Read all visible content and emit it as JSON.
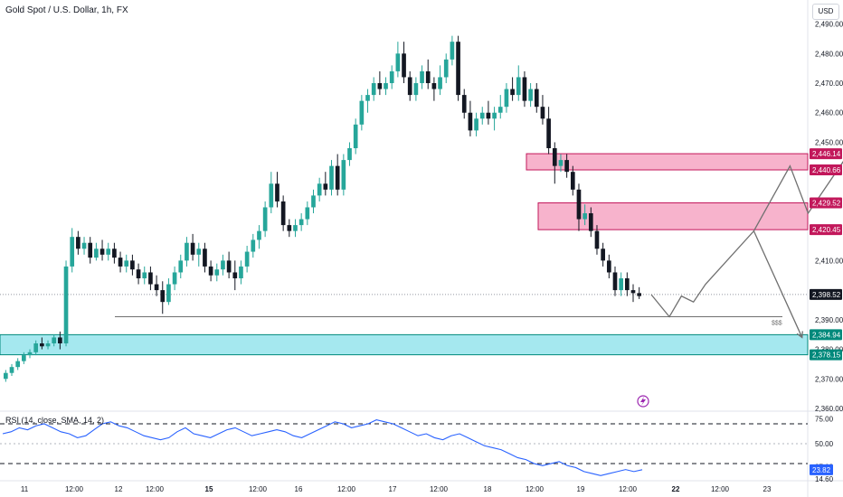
{
  "header": {
    "title": "Gold Spot / U.S. Dollar, 1h, FX",
    "currency": "USD",
    "rsi_label": "RSI (14, close, SMA, 14, 2)"
  },
  "colors": {
    "up": "#26a69a",
    "down": "#131722",
    "supply_zone_fill": "#f7b3cc",
    "supply_zone_stroke": "#c2185b",
    "demand_zone_fill": "#a5e8ef",
    "demand_zone_stroke": "#00897b",
    "rsi_line": "#2962ff",
    "path_line": "#707070",
    "last_price_badge": "#131722",
    "lightning_icon": "#9c27b0"
  },
  "chart_data": [
    {
      "type": "candlestick",
      "title": "Gold Spot / U.S. Dollar, 1h, FX",
      "xlabel": "",
      "ylabel": "",
      "ylim": [
        2360,
        2492
      ],
      "grid": false,
      "y_ticks": [
        "2,490.00",
        "2,480.00",
        "2,470.00",
        "2,460.00",
        "2,450.00",
        "2,410.00",
        "2,390.00",
        "2,380.00",
        "2,370.00",
        "2,360.00"
      ],
      "x_ticks": [
        "11",
        "12:00",
        "12",
        "12:00",
        "15",
        "12:00",
        "16",
        "12:00",
        "17",
        "12:00",
        "18",
        "12:00",
        "19",
        "12:00",
        "22",
        "12:00",
        "23"
      ],
      "price_markers": [
        {
          "label": "2,446.14",
          "value": 2446.14,
          "kind": "supply"
        },
        {
          "label": "2,440.66",
          "value": 2440.66,
          "kind": "supply"
        },
        {
          "label": "2,429.52",
          "value": 2429.52,
          "kind": "supply"
        },
        {
          "label": "2,420.45",
          "value": 2420.45,
          "kind": "supply"
        },
        {
          "label": "2,398.52",
          "value": 2398.52,
          "kind": "last"
        },
        {
          "label": "2,384.94",
          "value": 2384.94,
          "kind": "demand"
        },
        {
          "label": "2,378.15",
          "value": 2378.15,
          "kind": "demand"
        }
      ],
      "zones": [
        {
          "top": 2446.14,
          "bottom": 2440.66,
          "kind": "supply"
        },
        {
          "top": 2429.52,
          "bottom": 2420.45,
          "kind": "supply"
        },
        {
          "top": 2384.94,
          "bottom": 2378.15,
          "kind": "demand"
        }
      ],
      "liquidity_line": {
        "value": 2391,
        "label": "$$$"
      },
      "series": [
        {
          "values": [
            [
              2370,
              2373,
              2369,
              2372
            ],
            [
              2372,
              2375,
              2371,
              2374
            ],
            [
              2374,
              2377,
              2373,
              2376
            ],
            [
              2376,
              2379,
              2375,
              2378
            ],
            [
              2378,
              2380,
              2377,
              2379
            ],
            [
              2379,
              2383,
              2378,
              2382
            ],
            [
              2382,
              2384,
              2380,
              2381
            ],
            [
              2381,
              2383,
              2380,
              2382
            ],
            [
              2382,
              2385,
              2381,
              2384
            ],
            [
              2384,
              2386,
              2380,
              2382
            ],
            [
              2382,
              2410,
              2381,
              2408
            ],
            [
              2408,
              2421,
              2406,
              2418
            ],
            [
              2418,
              2420,
              2412,
              2414
            ],
            [
              2414,
              2418,
              2412,
              2416
            ],
            [
              2416,
              2418,
              2409,
              2411
            ],
            [
              2411,
              2416,
              2410,
              2414
            ],
            [
              2414,
              2417,
              2410,
              2412
            ],
            [
              2412,
              2416,
              2410,
              2414
            ],
            [
              2414,
              2416,
              2409,
              2411
            ],
            [
              2411,
              2413,
              2406,
              2408
            ],
            [
              2408,
              2412,
              2406,
              2410
            ],
            [
              2410,
              2412,
              2405,
              2407
            ],
            [
              2407,
              2409,
              2402,
              2404
            ],
            [
              2404,
              2408,
              2402,
              2406
            ],
            [
              2406,
              2408,
              2400,
              2402
            ],
            [
              2402,
              2405,
              2398,
              2400
            ],
            [
              2400,
              2403,
              2392,
              2396
            ],
            [
              2396,
              2404,
              2395,
              2402
            ],
            [
              2402,
              2408,
              2400,
              2406
            ],
            [
              2406,
              2412,
              2404,
              2410
            ],
            [
              2410,
              2418,
              2408,
              2416
            ],
            [
              2416,
              2419,
              2410,
              2412
            ],
            [
              2412,
              2416,
              2408,
              2414
            ],
            [
              2414,
              2416,
              2406,
              2408
            ],
            [
              2408,
              2410,
              2403,
              2405
            ],
            [
              2405,
              2409,
              2403,
              2407
            ],
            [
              2407,
              2412,
              2405,
              2410
            ],
            [
              2410,
              2413,
              2404,
              2406
            ],
            [
              2406,
              2410,
              2400,
              2404
            ],
            [
              2404,
              2410,
              2402,
              2408
            ],
            [
              2408,
              2415,
              2406,
              2413
            ],
            [
              2413,
              2419,
              2411,
              2417
            ],
            [
              2417,
              2422,
              2414,
              2420
            ],
            [
              2420,
              2430,
              2418,
              2428
            ],
            [
              2428,
              2440,
              2426,
              2436
            ],
            [
              2436,
              2440,
              2428,
              2430
            ],
            [
              2430,
              2432,
              2420,
              2422
            ],
            [
              2422,
              2424,
              2418,
              2420
            ],
            [
              2420,
              2424,
              2418,
              2422
            ],
            [
              2422,
              2426,
              2420,
              2424
            ],
            [
              2424,
              2430,
              2422,
              2428
            ],
            [
              2428,
              2434,
              2426,
              2432
            ],
            [
              2432,
              2438,
              2430,
              2436
            ],
            [
              2436,
              2440,
              2432,
              2434
            ],
            [
              2434,
              2444,
              2432,
              2442
            ],
            [
              2442,
              2446,
              2432,
              2434
            ],
            [
              2434,
              2446,
              2432,
              2444
            ],
            [
              2444,
              2450,
              2442,
              2448
            ],
            [
              2448,
              2458,
              2446,
              2456
            ],
            [
              2456,
              2466,
              2454,
              2464
            ],
            [
              2464,
              2468,
              2460,
              2466
            ],
            [
              2466,
              2472,
              2464,
              2470
            ],
            [
              2470,
              2474,
              2466,
              2468
            ],
            [
              2468,
              2472,
              2466,
              2470
            ],
            [
              2470,
              2476,
              2468,
              2474
            ],
            [
              2474,
              2484,
              2472,
              2480
            ],
            [
              2480,
              2484,
              2470,
              2472
            ],
            [
              2472,
              2474,
              2464,
              2466
            ],
            [
              2466,
              2472,
              2464,
              2470
            ],
            [
              2470,
              2476,
              2468,
              2474
            ],
            [
              2474,
              2478,
              2468,
              2470
            ],
            [
              2470,
              2472,
              2464,
              2468
            ],
            [
              2468,
              2476,
              2466,
              2472
            ],
            [
              2472,
              2480,
              2470,
              2478
            ],
            [
              2478,
              2486,
              2476,
              2484
            ],
            [
              2484,
              2486,
              2464,
              2466
            ],
            [
              2466,
              2468,
              2458,
              2460
            ],
            [
              2460,
              2464,
              2452,
              2454
            ],
            [
              2454,
              2460,
              2452,
              2458
            ],
            [
              2458,
              2462,
              2456,
              2460
            ],
            [
              2460,
              2464,
              2456,
              2458
            ],
            [
              2458,
              2462,
              2454,
              2460
            ],
            [
              2460,
              2466,
              2458,
              2462
            ],
            [
              2462,
              2470,
              2460,
              2468
            ],
            [
              2468,
              2472,
              2464,
              2466
            ],
            [
              2466,
              2476,
              2464,
              2472
            ],
            [
              2472,
              2474,
              2462,
              2464
            ],
            [
              2464,
              2470,
              2462,
              2468
            ],
            [
              2468,
              2470,
              2460,
              2462
            ],
            [
              2462,
              2466,
              2456,
              2458
            ],
            [
              2458,
              2462,
              2446,
              2448
            ],
            [
              2448,
              2450,
              2436,
              2442
            ],
            [
              2442,
              2446,
              2440,
              2444
            ],
            [
              2444,
              2446,
              2438,
              2440
            ],
            [
              2440,
              2442,
              2432,
              2434
            ],
            [
              2434,
              2436,
              2420,
              2424
            ],
            [
              2424,
              2429,
              2422,
              2426
            ],
            [
              2426,
              2428,
              2418,
              2420
            ],
            [
              2420,
              2422,
              2412,
              2414
            ],
            [
              2414,
              2416,
              2408,
              2410
            ],
            [
              2410,
              2412,
              2404,
              2406
            ],
            [
              2406,
              2408,
              2398,
              2400
            ],
            [
              2400,
              2406,
              2398,
              2404
            ],
            [
              2404,
              2406,
              2398,
              2400
            ],
            [
              2400,
              2402,
              2396,
              2399
            ],
            [
              2399,
              2401,
              2397,
              2398
            ]
          ]
        }
      ],
      "projection_paths": [
        {
          "points": [
            [
              107,
              2398.5
            ],
            [
              110,
              2391
            ],
            [
              112,
              2398
            ],
            [
              114,
              2396
            ],
            [
              116,
              2402
            ],
            [
              124,
              2420
            ],
            [
              130,
              2442
            ],
            [
              133,
              2426
            ],
            [
              139,
              2444
            ],
            [
              148,
              2396
            ]
          ]
        },
        {
          "points": [
            [
              124,
              2420
            ],
            [
              132,
              2384
            ]
          ]
        }
      ]
    },
    {
      "type": "line",
      "title": "RSI (14, close, SMA, 14, 2)",
      "ylim": [
        14.6,
        80
      ],
      "y_ticks": [
        "75.00",
        "50.00",
        "27.03",
        "23.82",
        "14.60"
      ],
      "bands": [
        70,
        50,
        30
      ],
      "series": [
        {
          "name": "RSI",
          "values": [
            60,
            62,
            66,
            64,
            68,
            70,
            66,
            62,
            60,
            56,
            58,
            64,
            70,
            72,
            68,
            66,
            62,
            58,
            56,
            54,
            56,
            62,
            66,
            60,
            58,
            56,
            60,
            64,
            66,
            62,
            58,
            60,
            62,
            64,
            62,
            58,
            56,
            60,
            64,
            68,
            72,
            70,
            66,
            68,
            70,
            74,
            72,
            70,
            66,
            62,
            58,
            60,
            56,
            54,
            58,
            60,
            56,
            52,
            48,
            46,
            44,
            40,
            36,
            34,
            30,
            28,
            30,
            32,
            28,
            26,
            22,
            20,
            18,
            20,
            22,
            24,
            22,
            23.82
          ]
        }
      ]
    }
  ]
}
